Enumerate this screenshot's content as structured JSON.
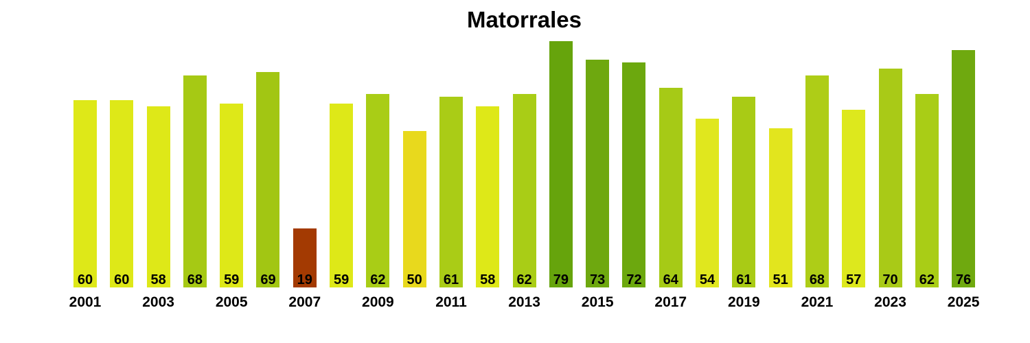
{
  "chart_data": {
    "type": "bar",
    "title": "Matorrales",
    "xlabel": "",
    "ylabel": "",
    "ylim": [
      0,
      80
    ],
    "grid": false,
    "legend": false,
    "value_label_position": "inside-bottom",
    "x": [
      2001,
      2002,
      2003,
      2004,
      2005,
      2006,
      2007,
      2008,
      2009,
      2010,
      2011,
      2012,
      2013,
      2014,
      2015,
      2016,
      2017,
      2018,
      2019,
      2020,
      2021,
      2022,
      2023,
      2024,
      2025
    ],
    "values": [
      60,
      60,
      58,
      68,
      59,
      69,
      19,
      59,
      62,
      50,
      61,
      58,
      62,
      79,
      73,
      72,
      64,
      54,
      61,
      51,
      68,
      57,
      70,
      62,
      76
    ],
    "colors": [
      "#dee818",
      "#dee818",
      "#dee818",
      "#a6c914",
      "#dee818",
      "#a2c613",
      "#a33a02",
      "#dee818",
      "#a9cd16",
      "#e8d91d",
      "#aacc16",
      "#dee818",
      "#a9cd16",
      "#66a40c",
      "#6ea80f",
      "#6ca80e",
      "#a6ca16",
      "#e0e71e",
      "#a9cb15",
      "#e2e51e",
      "#aecd17",
      "#dde81d",
      "#a9ca17",
      "#a9cd16",
      "#6fa90f"
    ],
    "x_tick_labels": [
      "2001",
      "2003",
      "2005",
      "2007",
      "2009",
      "2011",
      "2013",
      "2015",
      "2017",
      "2019",
      "2021",
      "2023",
      "2025"
    ],
    "bar_label_color": "#000000",
    "title_color": "#000000",
    "background_color": "#ffffff"
  }
}
